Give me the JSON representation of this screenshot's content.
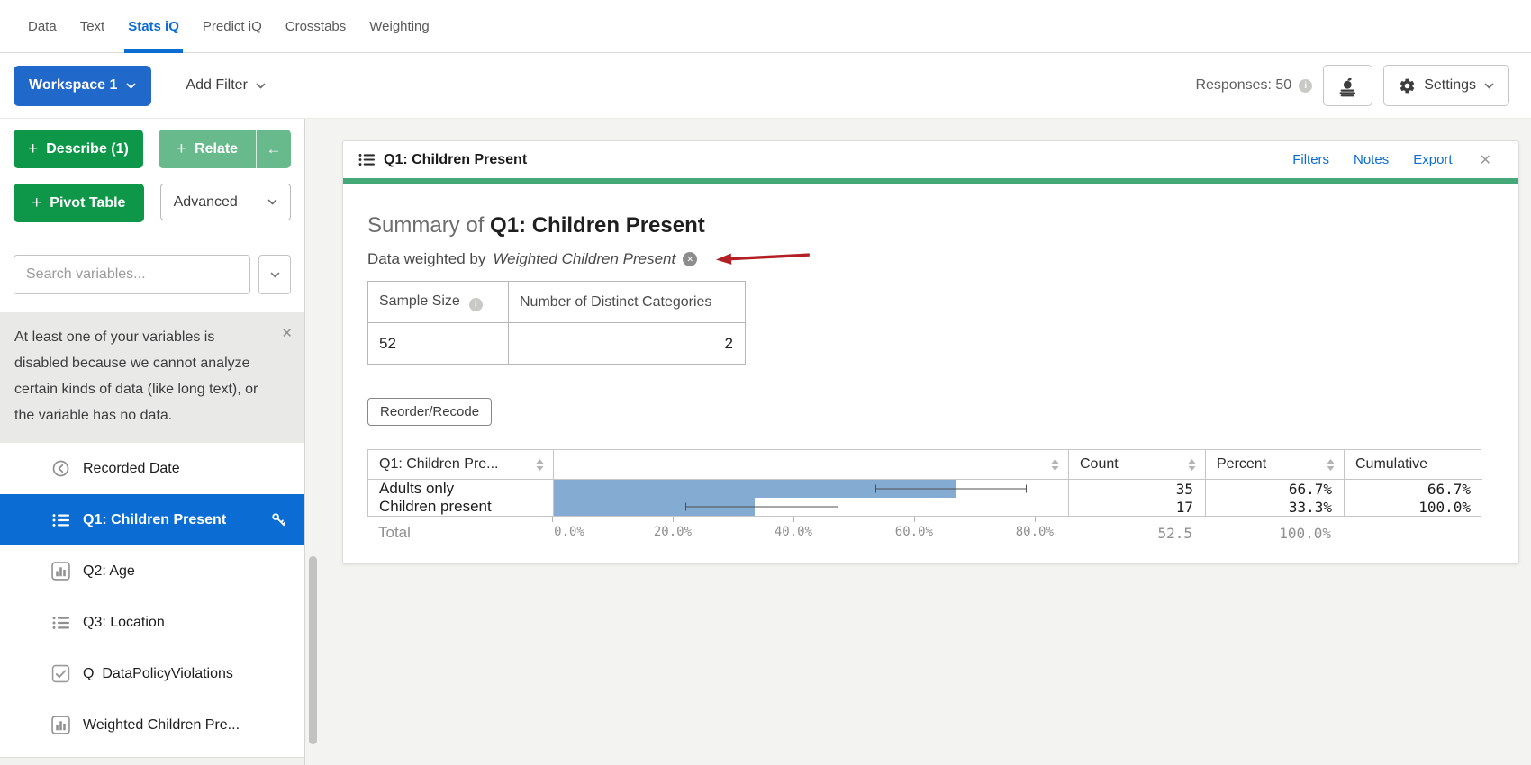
{
  "colors": {
    "accent_blue": "#0b6cd4",
    "workspace_blue": "#2068c9",
    "button_green": "#0e9649",
    "light_green": "#68b98b",
    "card_top_green": "#45a878",
    "bar_fill": "#84abd2",
    "annotation_red": "#b21f24"
  },
  "icons": {
    "plus": "+",
    "back_arrow": "←",
    "close": "✕",
    "info": "i"
  },
  "topnav": {
    "tabs": [
      {
        "label": "Data",
        "active": false
      },
      {
        "label": "Text",
        "active": false
      },
      {
        "label": "Stats iQ",
        "active": true
      },
      {
        "label": "Predict iQ",
        "active": false
      },
      {
        "label": "Crosstabs",
        "active": false
      },
      {
        "label": "Weighting",
        "active": false
      }
    ]
  },
  "toolbar": {
    "workspace_label": "Workspace 1",
    "add_filter_label": "Add Filter",
    "responses_label": "Responses: 50",
    "settings_label": "Settings"
  },
  "sidebar": {
    "describe_label": "Describe (1)",
    "relate_label": "Relate",
    "pivot_label": "Pivot Table",
    "advanced_label": "Advanced",
    "search_placeholder": "Search variables...",
    "notice_text": "At least one of your variables is disabled because we cannot analyze certain kinds of data (like long text), or the variable has no data.",
    "variables": [
      {
        "label": "Recorded Date",
        "icon": "history-icon",
        "selected": false
      },
      {
        "label": "Q1: Children Present",
        "icon": "list-icon",
        "selected": true
      },
      {
        "label": "Q2: Age",
        "icon": "bar-chart-icon",
        "selected": false
      },
      {
        "label": "Q3: Location",
        "icon": "list-icon",
        "selected": false
      },
      {
        "label": "Q_DataPolicyViolations",
        "icon": "checkbox-icon",
        "selected": false
      },
      {
        "label": "Weighted Children Pre...",
        "icon": "bar-chart-icon",
        "selected": false
      }
    ]
  },
  "main": {
    "card_title": "Q1: Children Present",
    "links": {
      "filters": "Filters",
      "notes": "Notes",
      "export": "Export"
    },
    "summary_prefix": "Summary of ",
    "summary_title": "Q1: Children Present",
    "weighted_prefix": "Data weighted by ",
    "weighted_variable": "Weighted Children Present",
    "stats_table": {
      "sample_size_header": "Sample Size",
      "distinct_header": "Number of Distinct Categories",
      "sample_size": "52",
      "distinct_categories": "2"
    },
    "reorder_button": "Reorder/Recode",
    "freq_table": {
      "col_label": "Q1: Children Pre...",
      "count_header": "Count",
      "percent_header": "Percent",
      "cumulative_header": "Cumulative",
      "rows": [
        {
          "label": "Adults only",
          "count": "35",
          "percent": "66.7%",
          "cumulative": "66.7%"
        },
        {
          "label": "Children present",
          "count": "17",
          "percent": "33.3%",
          "cumulative": "100.0%"
        }
      ],
      "total_label": "Total",
      "total_count": "52.5",
      "total_percent": "100.0%",
      "axis_ticks": [
        "0.0%",
        "20.0%",
        "40.0%",
        "60.0%",
        "80.0%"
      ]
    }
  },
  "chart_data": {
    "type": "bar",
    "orientation": "horizontal",
    "title": "Summary of Q1: Children Present",
    "categories": [
      "Adults only",
      "Children present"
    ],
    "values": [
      66.7,
      33.3
    ],
    "counts": [
      35,
      17
    ],
    "cumulative": [
      66.7,
      100.0
    ],
    "total_count": 52.5,
    "total_percent": 100.0,
    "error_bars": [
      [
        53.4,
        78.5
      ],
      [
        21.9,
        47.3
      ]
    ],
    "xlabel_ticks": [
      0,
      20,
      40,
      60,
      80
    ],
    "xlim": [
      0,
      85.4
    ],
    "bar_color": "#84abd2",
    "grid": false,
    "legend": "none"
  }
}
